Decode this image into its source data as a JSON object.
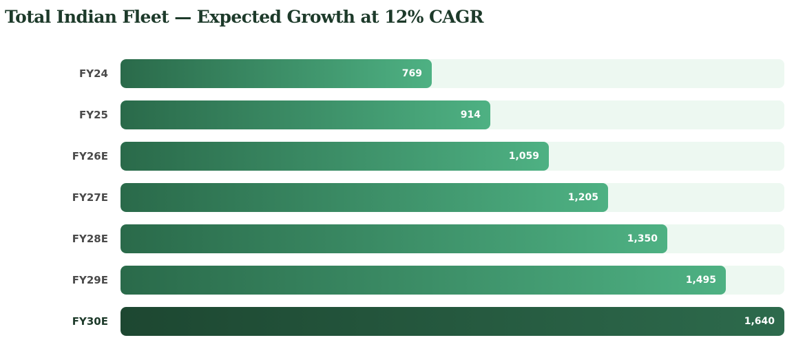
{
  "title": "Total Indian Fleet — Expected Growth at 12% CAGR",
  "chart_data": {
    "type": "bar",
    "orientation": "horizontal",
    "title": "Total Indian Fleet — Expected Growth at 12% CAGR",
    "categories": [
      "FY24",
      "FY25",
      "FY26E",
      "FY27E",
      "FY28E",
      "FY29E",
      "FY30E"
    ],
    "values": [
      769,
      914,
      1059,
      1205,
      1350,
      1495,
      1640
    ],
    "value_labels": [
      "769",
      "914",
      "1,059",
      "1,205",
      "1,350",
      "1,495",
      "1,640"
    ],
    "highlight": "FY30E",
    "xlim": [
      0,
      1640
    ],
    "colors": {
      "bar_start": "#2a6a4a",
      "bar_end": "#4eb183",
      "highlight_start": "#1d4731",
      "highlight_end": "#2d6a4c",
      "track": "#edf8f1",
      "title": "#1d3a2a",
      "label": "#4a4a4a"
    }
  }
}
